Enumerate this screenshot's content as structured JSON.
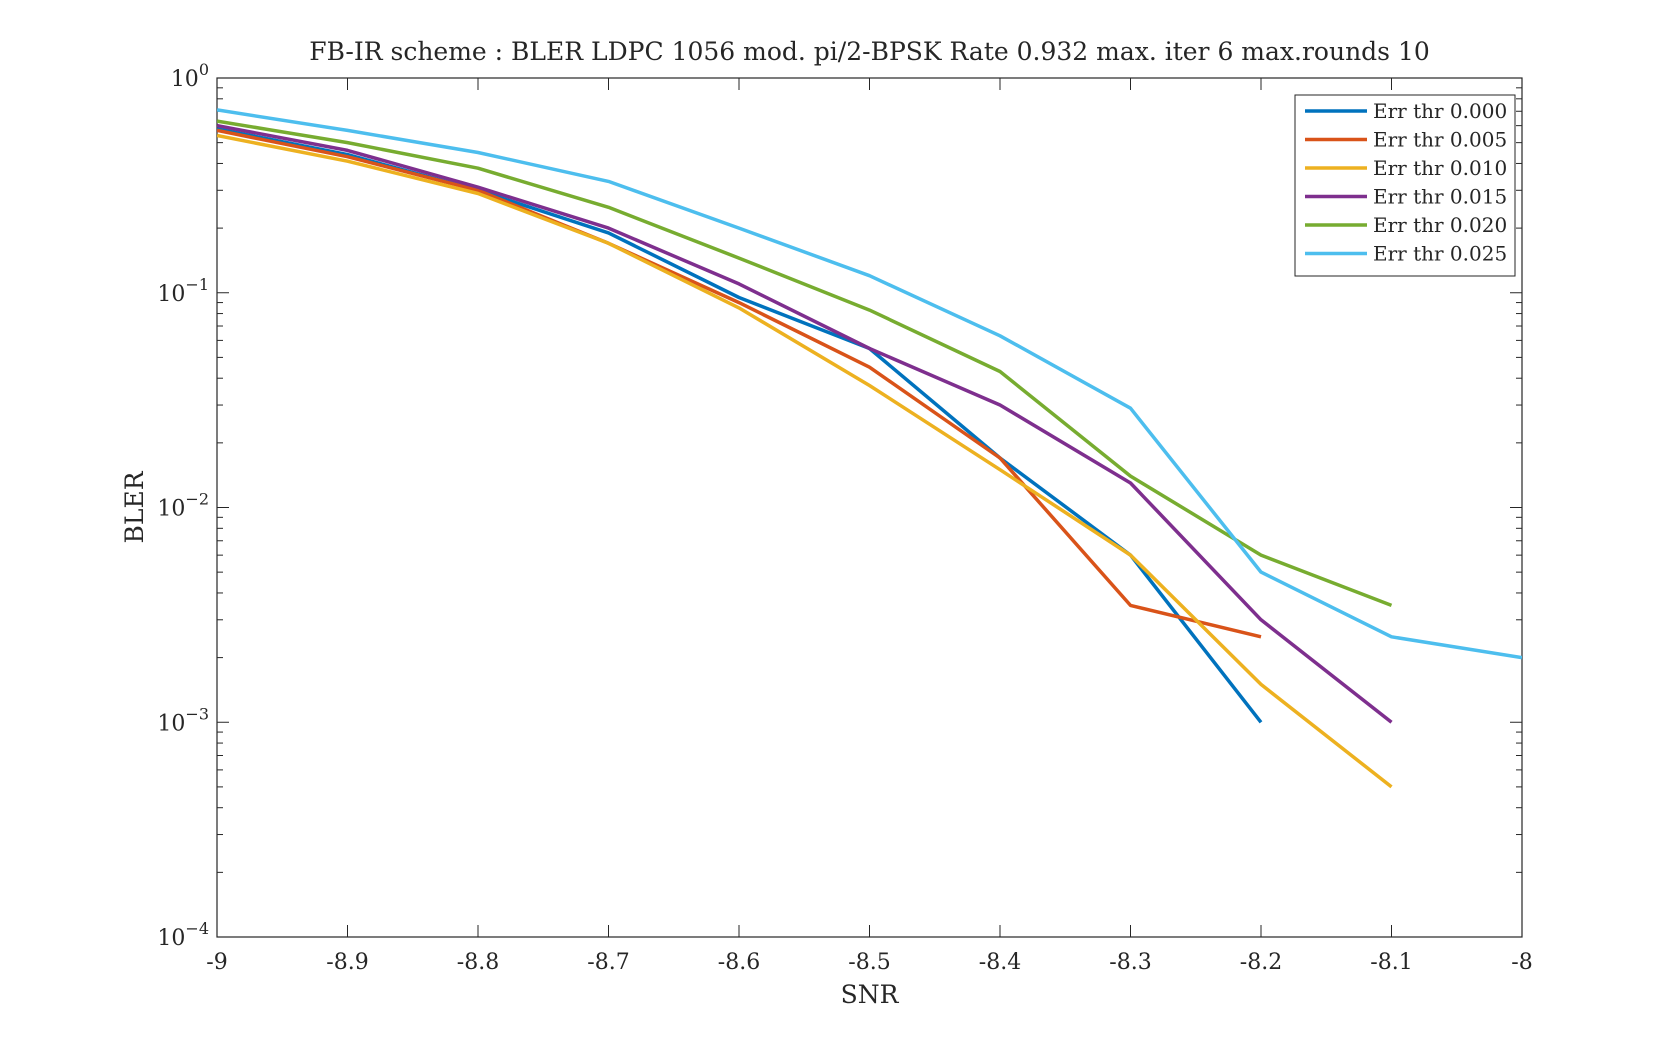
{
  "chart_data": {
    "type": "line",
    "title": "FB-IR scheme : BLER LDPC 1056 mod. pi/2-BPSK Rate 0.932 max. iter 6 max.rounds 10",
    "xlabel": "SNR",
    "ylabel": "BLER",
    "xlim": [
      -9,
      -8
    ],
    "ylim": [
      0.0001,
      1
    ],
    "yscale": "log",
    "grid": false,
    "legend_position": "top-right",
    "x_ticks": [
      {
        "value": -9,
        "label": "-9"
      },
      {
        "value": -8.9,
        "label": "-8.9"
      },
      {
        "value": -8.8,
        "label": "-8.8"
      },
      {
        "value": -8.7,
        "label": "-8.7"
      },
      {
        "value": -8.6,
        "label": "-8.6"
      },
      {
        "value": -8.5,
        "label": "-8.5"
      },
      {
        "value": -8.4,
        "label": "-8.4"
      },
      {
        "value": -8.3,
        "label": "-8.3"
      },
      {
        "value": -8.2,
        "label": "-8.2"
      },
      {
        "value": -8.1,
        "label": "-8.1"
      },
      {
        "value": -8,
        "label": "-8"
      }
    ],
    "y_ticks": [
      {
        "value": 1,
        "base": "10",
        "exp": "0"
      },
      {
        "value": 0.1,
        "base": "10",
        "exp": "−1"
      },
      {
        "value": 0.01,
        "base": "10",
        "exp": "−2"
      },
      {
        "value": 0.001,
        "base": "10",
        "exp": "−3"
      },
      {
        "value": 0.0001,
        "base": "10",
        "exp": "−4"
      }
    ],
    "series": [
      {
        "name": "Err thr 0.000",
        "color": "#0072BD",
        "x": [
          -9,
          -8.9,
          -8.8,
          -8.7,
          -8.6,
          -8.5,
          -8.4,
          -8.3,
          -8.2
        ],
        "y": [
          0.58,
          0.44,
          0.3,
          0.19,
          0.095,
          0.055,
          0.017,
          0.006,
          0.001
        ]
      },
      {
        "name": "Err thr 0.005",
        "color": "#D95319",
        "x": [
          -9,
          -8.9,
          -8.8,
          -8.7,
          -8.6,
          -8.5,
          -8.4,
          -8.3,
          -8.2
        ],
        "y": [
          0.57,
          0.43,
          0.3,
          0.17,
          0.09,
          0.045,
          0.017,
          0.0035,
          0.0025
        ]
      },
      {
        "name": "Err thr 0.010",
        "color": "#EDB120",
        "x": [
          -9,
          -8.9,
          -8.8,
          -8.7,
          -8.6,
          -8.5,
          -8.4,
          -8.3,
          -8.2,
          -8.1
        ],
        "y": [
          0.54,
          0.41,
          0.29,
          0.17,
          0.085,
          0.037,
          0.015,
          0.006,
          0.0015,
          0.0005
        ]
      },
      {
        "name": "Err thr 0.015",
        "color": "#7E2F8E",
        "x": [
          -9,
          -8.9,
          -8.8,
          -8.7,
          -8.6,
          -8.5,
          -8.4,
          -8.3,
          -8.2,
          -8.1
        ],
        "y": [
          0.6,
          0.46,
          0.31,
          0.2,
          0.11,
          0.055,
          0.03,
          0.013,
          0.003,
          0.001
        ]
      },
      {
        "name": "Err thr 0.020",
        "color": "#77AC30",
        "x": [
          -9,
          -8.9,
          -8.8,
          -8.7,
          -8.6,
          -8.5,
          -8.4,
          -8.3,
          -8.2,
          -8.1
        ],
        "y": [
          0.63,
          0.5,
          0.38,
          0.25,
          0.145,
          0.083,
          0.043,
          0.014,
          0.006,
          0.0035
        ]
      },
      {
        "name": "Err thr 0.025",
        "color": "#4DBEEE",
        "x": [
          -9,
          -8.9,
          -8.8,
          -8.7,
          -8.6,
          -8.5,
          -8.4,
          -8.3,
          -8.2,
          -8.1,
          -8
        ],
        "y": [
          0.71,
          0.57,
          0.45,
          0.33,
          0.2,
          0.12,
          0.063,
          0.029,
          0.005,
          0.0025,
          0.002
        ]
      }
    ]
  }
}
